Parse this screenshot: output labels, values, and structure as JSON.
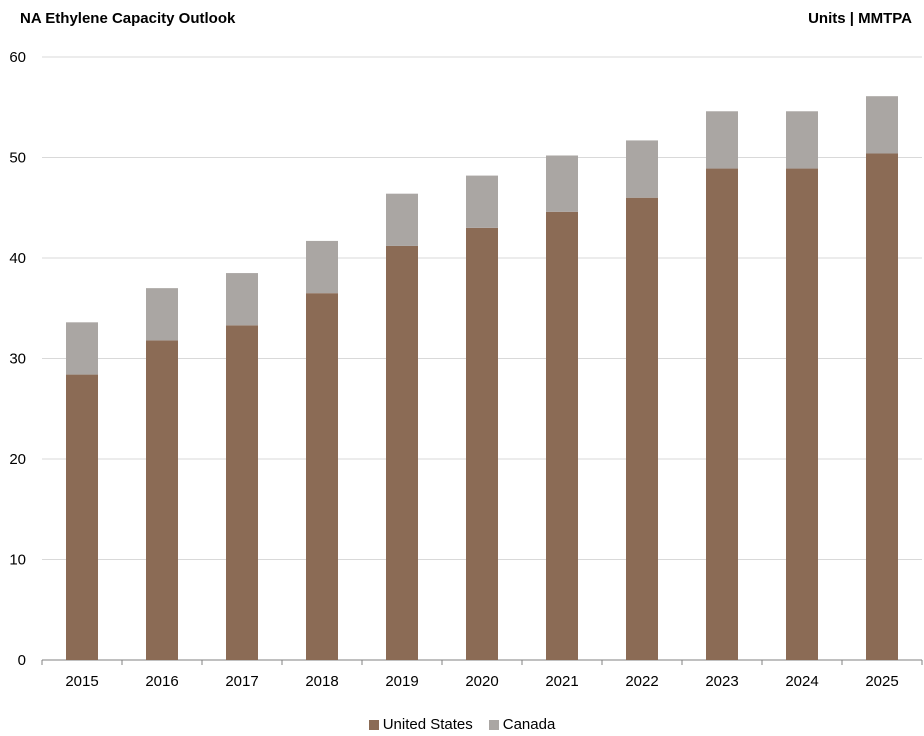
{
  "chart_data": {
    "type": "bar",
    "stacked": true,
    "title": "NA Ethylene Capacity Outlook",
    "units_label": "Units | MMTPA",
    "categories": [
      "2015",
      "2016",
      "2017",
      "2018",
      "2019",
      "2020",
      "2021",
      "2022",
      "2023",
      "2024",
      "2025"
    ],
    "series": [
      {
        "name": "United States",
        "color": "#8b6b55",
        "values": [
          28.4,
          31.8,
          33.3,
          36.5,
          41.2,
          43.0,
          44.6,
          46.0,
          48.9,
          48.9,
          50.4
        ]
      },
      {
        "name": "Canada",
        "color": "#aaa6a3",
        "values": [
          5.2,
          5.2,
          5.2,
          5.2,
          5.2,
          5.2,
          5.6,
          5.7,
          5.7,
          5.7,
          5.7
        ]
      }
    ],
    "yticks": [
      0,
      10,
      20,
      30,
      40,
      50,
      60
    ],
    "ylim": [
      0,
      60
    ],
    "grid": true,
    "legend_position": "bottom"
  }
}
